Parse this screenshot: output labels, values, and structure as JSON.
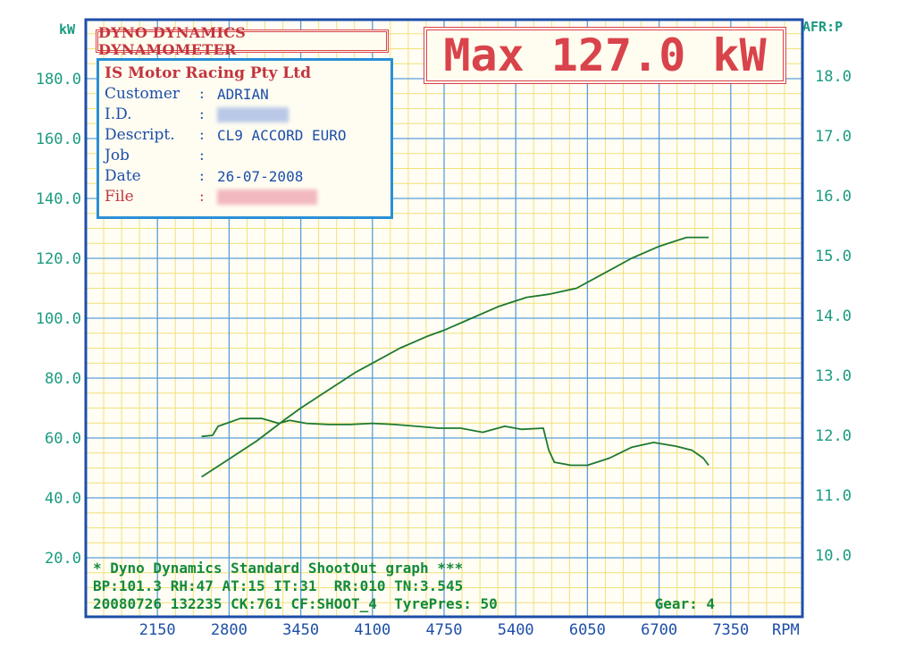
{
  "header": {
    "banner": "DYNO DYNAMICS DYNAMOMETER",
    "max_label": "Max 127.0 kW"
  },
  "info": {
    "company": "IS Motor Racing Pty Ltd",
    "rows": [
      {
        "key": "Customer",
        "value": "ADRIAN"
      },
      {
        "key": "I.D.",
        "value": ""
      },
      {
        "key": "Descript.",
        "value": "CL9 ACCORD EURO"
      },
      {
        "key": "Job",
        "value": ""
      },
      {
        "key": "Date",
        "value": "26-07-2008"
      },
      {
        "key": "File",
        "value": ""
      }
    ]
  },
  "footer": {
    "line1": "* Dyno Dynamics Standard ShootOut graph ***",
    "line2": "BP:101.3 RH:47 AT:15 IT:31  RR:010 TN:3.545",
    "line3": "20080726 132235 CK:761 CF:SHOOT_4  TyrePres: 50",
    "gear": "Gear: 4"
  },
  "colors": {
    "grid_major": "#5aa0dc",
    "grid_minor": "#f0e27a",
    "frame": "#1d4ea8",
    "curve": "#1e7a2e",
    "label": "#1a9a80"
  },
  "chart_data": {
    "type": "line",
    "title": "",
    "xlabel": "RPM",
    "ylabel_left": "kW",
    "ylabel_right": "AFR:P",
    "xlim": [
      1500,
      8000
    ],
    "ylim_left": [
      20,
      200
    ],
    "ylim_right": [
      10,
      19
    ],
    "x_ticks": [
      2150,
      2800,
      3450,
      4100,
      4750,
      5400,
      6050,
      6700,
      7350
    ],
    "y_ticks_left": [
      "20.0",
      "40.0",
      "60.0",
      "80.0",
      "100.0",
      "120.0",
      "140.0",
      "160.0",
      "180.0"
    ],
    "y_ticks_right": [
      "10.0",
      "11.0",
      "12.0",
      "13.0",
      "14.0",
      "15.0",
      "16.0",
      "17.0",
      "18.0"
    ],
    "grid": true,
    "series": [
      {
        "axis": "left",
        "x": [
          2550,
          2800,
          3050,
          3300,
          3450,
          3700,
          3950,
          4100,
          4350,
          4600,
          4750,
          5000,
          5250,
          5500,
          5700,
          5950,
          6200,
          6450,
          6700,
          6950,
          7150
        ],
        "y": [
          47,
          53,
          59,
          66,
          70,
          76,
          82,
          85,
          90,
          94,
          96,
          100,
          104,
          107,
          108,
          110,
          115,
          120,
          124,
          127,
          127
        ]
      },
      {
        "axis": "right",
        "x": [
          2550,
          2650,
          2700,
          2900,
          3100,
          3250,
          3350,
          3500,
          3700,
          3900,
          4100,
          4300,
          4500,
          4700,
          4900,
          5100,
          5300,
          5450,
          5650,
          5700,
          5750,
          5900,
          6050,
          6250,
          6450,
          6650,
          6850,
          7000,
          7100,
          7150
        ],
        "y": [
          11.98,
          12.0,
          12.15,
          12.28,
          12.28,
          12.2,
          12.25,
          12.2,
          12.18,
          12.18,
          12.2,
          12.18,
          12.15,
          12.12,
          12.12,
          12.05,
          12.15,
          12.1,
          12.12,
          11.75,
          11.55,
          11.5,
          11.5,
          11.62,
          11.8,
          11.88,
          11.82,
          11.75,
          11.62,
          11.5
        ]
      }
    ]
  }
}
